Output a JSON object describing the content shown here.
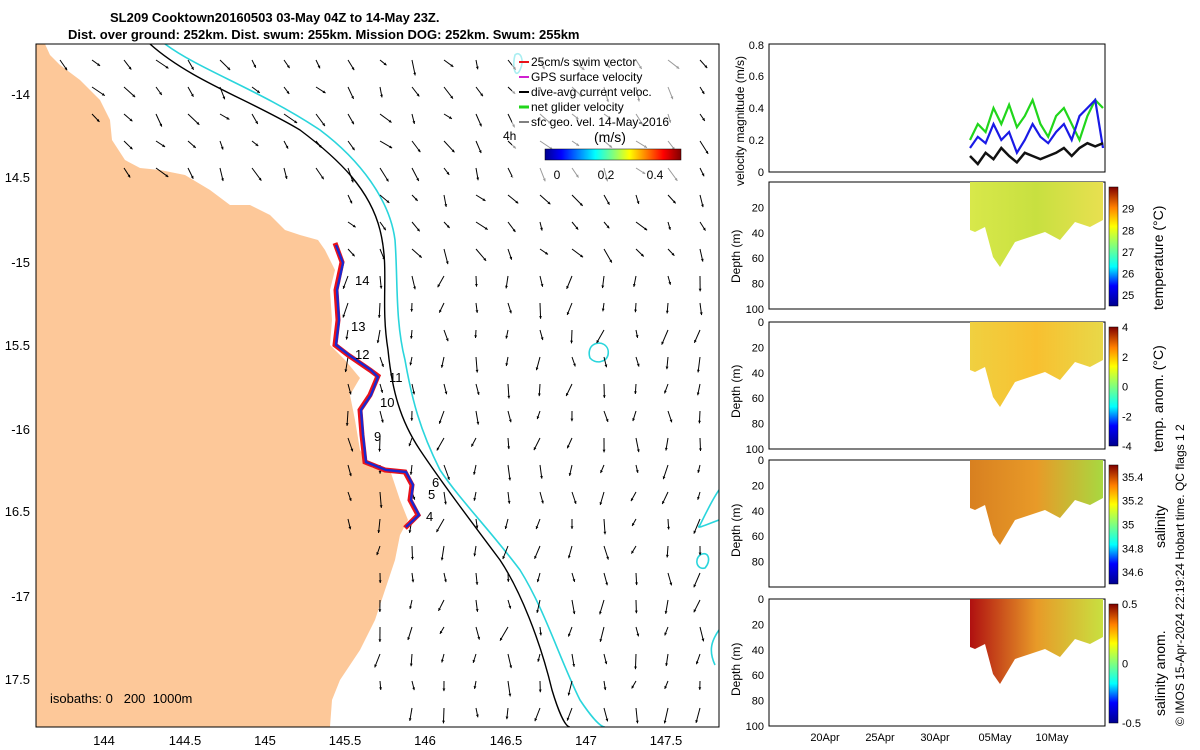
{
  "title": {
    "line1": "SL209 Cooktown20160503 03-May 04Z to 14-May 23Z.",
    "line2": "Dist. over ground: 252km. Dist. swum: 255km. Mission DOG: 252km. Swum: 255km"
  },
  "colors": {
    "land": "#fdc899",
    "isobath200": "#000000",
    "isobath1000": "#2ad5dc",
    "track_red": "#e8121a",
    "track_blue": "#1828d0",
    "net_velocity": "#21d61b",
    "mag_blue": "#1a1ae6",
    "mag_black": "#111111"
  },
  "map": {
    "legend": [
      {
        "label": "25cm/s swim vector",
        "color": "#e8121a"
      },
      {
        "label": "GPS surface velocity",
        "color": "#d020d0"
      },
      {
        "label": "dive-avg current veloc.",
        "color": "#000000"
      },
      {
        "label": "net glider velocity",
        "color": "#21d61b"
      },
      {
        "label": "sfc geo. vel. 14-May-2016",
        "color": "#000000"
      }
    ],
    "vector_label": "4h",
    "colorbar_unit": "(m/s)",
    "colorbar_ticks": [
      "0",
      "0.2",
      "0.4"
    ],
    "isobaths_note": "isobaths: 0   200  1000m",
    "lon_ticks": [
      "144",
      "144.5",
      "145",
      "145.5",
      "146",
      "146.5",
      "147",
      "147.5"
    ],
    "lat_ticks": [
      "-14",
      "14.5",
      "-15",
      "15.5",
      "-16",
      "16.5",
      "-17",
      "17.5"
    ],
    "day_labels": [
      "14",
      "13",
      "12",
      "11",
      "10",
      "9",
      "6",
      "5",
      "4"
    ]
  },
  "chart_data": [
    {
      "type": "line",
      "ylabel": "velocity magnitude (m/s)",
      "ylim": [
        0,
        0.8
      ],
      "y_ticks": [
        "0",
        "0.2",
        "0.4",
        "0.6",
        "0.8"
      ],
      "series": [
        {
          "color": "#21d61b",
          "values": [
            0.2,
            0.3,
            0.25,
            0.4,
            0.3,
            0.42,
            0.28,
            0.35,
            0.45,
            0.3,
            0.22,
            0.35,
            0.4,
            0.3,
            0.2,
            0.35,
            0.45,
            0.4
          ]
        },
        {
          "color": "#1a1ae6",
          "values": [
            0.15,
            0.22,
            0.18,
            0.3,
            0.2,
            0.25,
            0.12,
            0.2,
            0.3,
            0.22,
            0.18,
            0.25,
            0.3,
            0.2,
            0.35,
            0.4,
            0.45,
            0.15
          ]
        },
        {
          "color": "#111111",
          "values": [
            0.1,
            0.05,
            0.12,
            0.08,
            0.15,
            0.1,
            0.06,
            0.12,
            0.1,
            0.08,
            0.1,
            0.12,
            0.15,
            0.1,
            0.15,
            0.18,
            0.16,
            0.18
          ]
        }
      ]
    },
    {
      "type": "heatmap",
      "ylabel": "Depth (m)",
      "cbar_label": "temperature (°C)",
      "y_ticks": [
        "20",
        "40",
        "60",
        "80",
        "100"
      ],
      "cbar_ticks": [
        "29",
        "28",
        "27",
        "26",
        "25"
      ],
      "crange": [
        24.5,
        30
      ]
    },
    {
      "type": "heatmap",
      "ylabel": "Depth (m)",
      "cbar_label": "temp. anom. (°C)",
      "y_ticks": [
        "0",
        "20",
        "40",
        "60",
        "80",
        "100"
      ],
      "cbar_ticks": [
        "4",
        "2",
        "0",
        "-2",
        "-4"
      ],
      "crange": [
        -4,
        4
      ]
    },
    {
      "type": "heatmap",
      "ylabel": "Depth (m)",
      "cbar_label": "salinity",
      "y_ticks": [
        "0",
        "20",
        "40",
        "60",
        "80"
      ],
      "cbar_ticks": [
        "35.4",
        "35.2",
        "35",
        "34.8",
        "34.6"
      ],
      "crange": [
        34.5,
        35.5
      ]
    },
    {
      "type": "heatmap",
      "ylabel": "Depth (m)",
      "cbar_label": "salinity anom.",
      "y_ticks": [
        "0",
        "20",
        "40",
        "60",
        "80",
        "100"
      ],
      "cbar_ticks": [
        "0.5",
        "0",
        "-0.5"
      ],
      "crange": [
        -0.5,
        0.5
      ],
      "x_ticks": [
        "20Apr",
        "25Apr",
        "30Apr",
        "05May",
        "10May"
      ]
    }
  ],
  "credit": "© IMOS 15-Apr-2024 22:19:24 Hobart time. QC flags 1  2"
}
